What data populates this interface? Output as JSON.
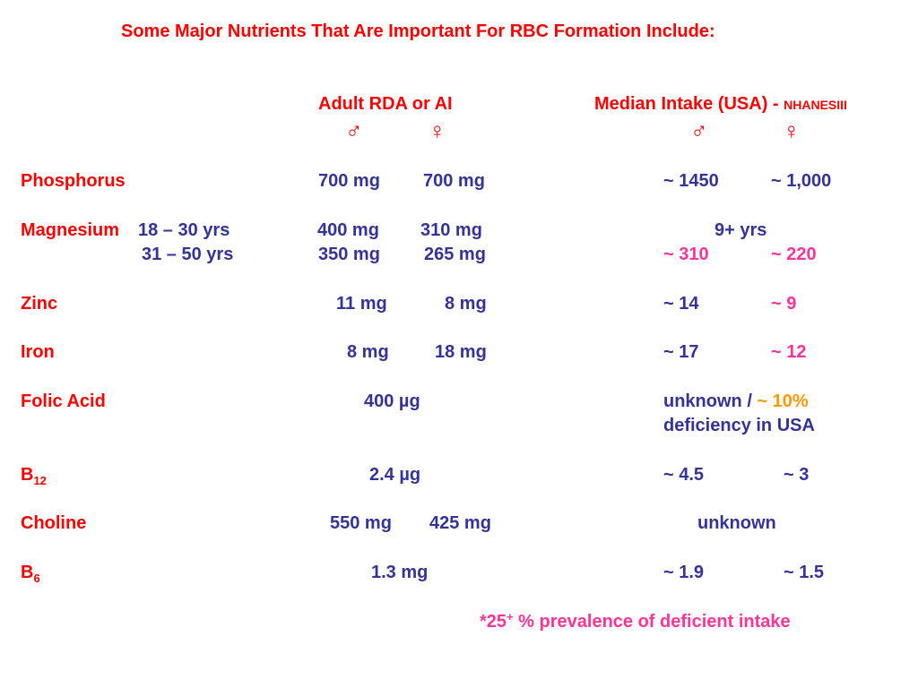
{
  "title": "Some Major Nutrients That Are Important For RBC Formation Include:",
  "headers": {
    "rda": "Adult RDA or AI",
    "median": "Median Intake (USA) - ",
    "median_source": "NHANESIII",
    "male_symbol": "♂",
    "female_symbol": "♀"
  },
  "rows": {
    "phosphorus": {
      "name": "Phosphorus",
      "rda_m": "700 mg",
      "rda_f": "700 mg",
      "int_m": "~ 1450",
      "int_f": "~ 1,000"
    },
    "magnesium": {
      "name": "Magnesium",
      "age1": "18 – 30 yrs",
      "rda_m1": "400 mg",
      "rda_f1": "310 mg",
      "age_note": "9+ yrs",
      "age2": "31 – 50 yrs",
      "rda_m2": "350 mg",
      "rda_f2": "265 mg",
      "int_m": "~ 310",
      "int_f": "~ 220"
    },
    "zinc": {
      "name": "Zinc",
      "rda_m": "11 mg",
      "rda_f": "8 mg",
      "int_m": "~ 14",
      "int_f": "~ 9"
    },
    "iron": {
      "name": "Iron",
      "rda_m": "8 mg",
      "rda_f": "18 mg",
      "int_m": "~ 17",
      "int_f": "~ 12"
    },
    "folic": {
      "name": "Folic Acid",
      "rda": "400 µg",
      "int_a": "unknown / ",
      "int_b": "~ 10%",
      "int_c": "deficiency in USA"
    },
    "b12": {
      "name": "B",
      "sub": "12",
      "rda": "2.4 µg",
      "int_m": "~ 4.5",
      "int_f": "~ 3"
    },
    "choline": {
      "name": "Choline",
      "rda_m": "550 mg",
      "rda_f": "425 mg",
      "intake": "unknown"
    },
    "b6": {
      "name": "B",
      "sub": "6",
      "rda": "1.3 mg",
      "int_m": "~ 1.9",
      "int_f": "~ 1.5"
    }
  },
  "footnote": {
    "star": "*25",
    "sup": "+",
    "text": " % prevalence of deficient intake"
  }
}
